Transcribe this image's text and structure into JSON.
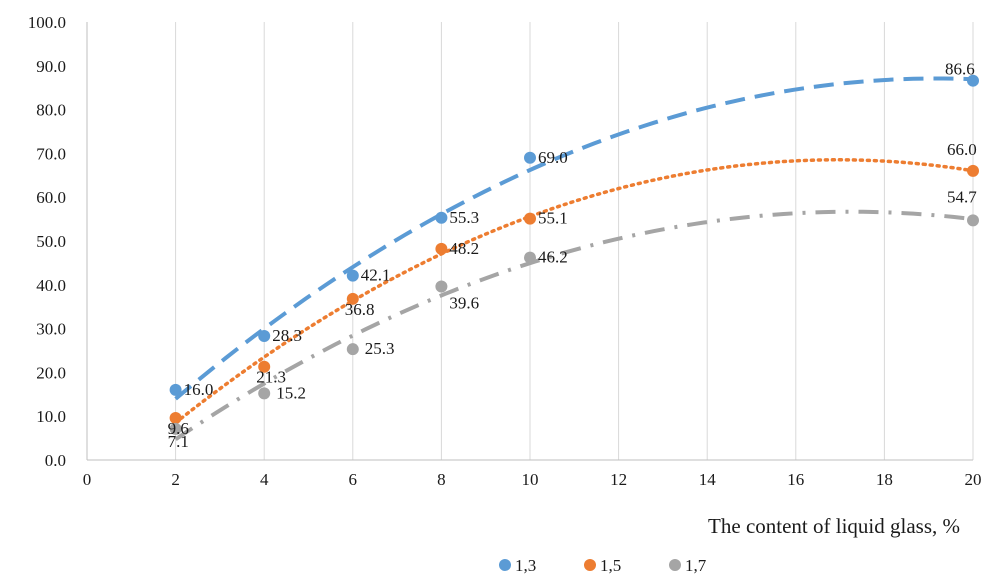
{
  "chart_data": {
    "type": "scatter",
    "xlabel": "The content of liquid glass, %",
    "ylabel": "",
    "xlim": [
      0,
      20
    ],
    "ylim": [
      0,
      100
    ],
    "x_ticks": [
      "0",
      "2",
      "4",
      "6",
      "8",
      "10",
      "12",
      "14",
      "16",
      "18",
      "20"
    ],
    "y_ticks": [
      "0.0",
      "10.0",
      "20.0",
      "30.0",
      "40.0",
      "50.0",
      "60.0",
      "70.0",
      "80.0",
      "90.0",
      "100.0"
    ],
    "grid": "vertical",
    "legend_position": "bottom-right",
    "series": [
      {
        "name": "1,3",
        "color": "#5b9bd5",
        "trendline": "dashed",
        "x": [
          2,
          4,
          6,
          8,
          10,
          20
        ],
        "y": [
          16.0,
          28.3,
          42.1,
          55.3,
          69.0,
          86.6
        ],
        "labels": [
          "16.0",
          "28.3",
          "42.1",
          "55.3",
          "69.0",
          "86.6"
        ]
      },
      {
        "name": "1,5",
        "color": "#ed7d31",
        "trendline": "dotted",
        "x": [
          2,
          4,
          6,
          8,
          10,
          20
        ],
        "y": [
          9.6,
          21.3,
          36.8,
          48.2,
          55.1,
          66.0
        ],
        "labels": [
          "9.6",
          "21.3",
          "36.8",
          "48.2",
          "55.1",
          "66.0"
        ]
      },
      {
        "name": "1,7",
        "color": "#a5a5a5",
        "trendline": "dash-dot",
        "x": [
          2,
          4,
          6,
          8,
          10,
          20
        ],
        "y": [
          7.1,
          15.2,
          25.3,
          39.6,
          46.2,
          54.7
        ],
        "labels": [
          "7.1",
          "15.2",
          "25.3",
          "39.6",
          "46.2",
          "54.7"
        ]
      }
    ]
  }
}
